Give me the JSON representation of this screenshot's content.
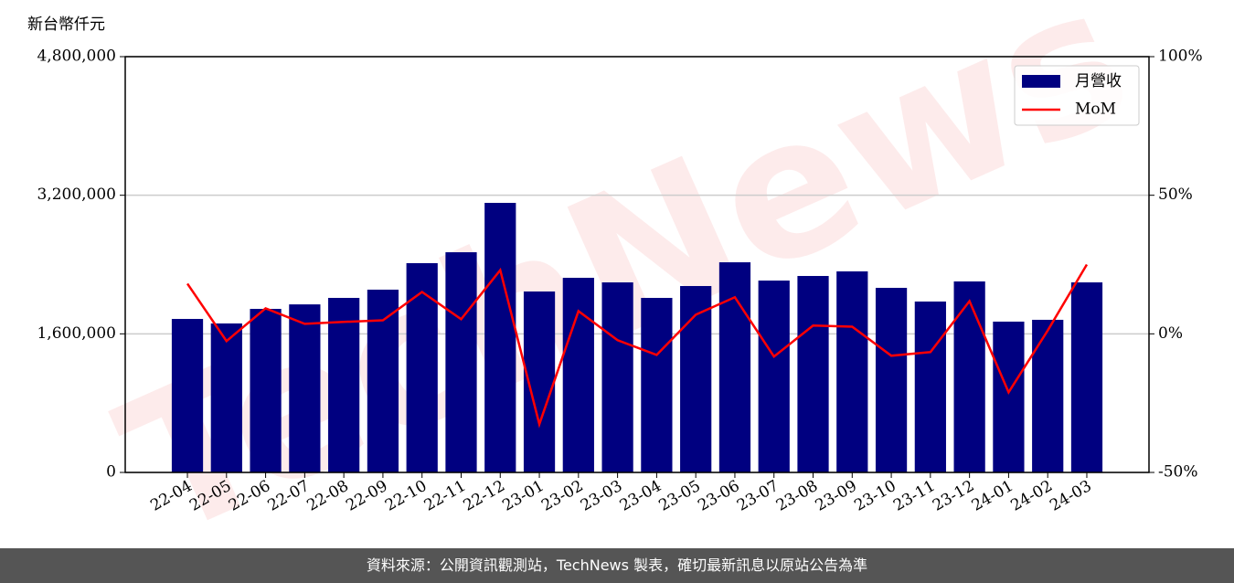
{
  "chart_data": {
    "type": "bar",
    "watermark": "TechNews",
    "y_label": "新台幣仟元",
    "categories": [
      "22-04",
      "22-05",
      "22-06",
      "22-07",
      "22-08",
      "22-09",
      "22-10",
      "22-11",
      "22-12",
      "23-01",
      "23-02",
      "23-03",
      "23-04",
      "23-05",
      "23-06",
      "23-07",
      "23-08",
      "23-09",
      "23-10",
      "23-11",
      "23-12",
      "24-01",
      "24-02",
      "24-03"
    ],
    "series": [
      {
        "name": "月營收",
        "type": "bar",
        "color": "#000080",
        "values": [
          1772000,
          1720000,
          1888000,
          1940000,
          2015000,
          2110000,
          2416000,
          2542000,
          3112000,
          2089000,
          2247000,
          2194000,
          2015000,
          2152000,
          2426000,
          2215000,
          2268000,
          2321000,
          2131000,
          1973000,
          2205000,
          1741000,
          1762000,
          2194000
        ]
      },
      {
        "name": "MoM",
        "type": "line",
        "color": "#ff0000",
        "axis": "y2",
        "values": [
          18.1,
          -2.6,
          9.2,
          3.6,
          4.3,
          4.9,
          15.1,
          5.3,
          23.0,
          -32.6,
          8.2,
          -2.3,
          -7.6,
          6.9,
          13.2,
          -8.2,
          3.0,
          2.6,
          -7.9,
          -6.6,
          11.8,
          -21.1,
          1.2,
          25.0
        ]
      }
    ],
    "ylim": [
      0,
      4800000
    ],
    "yticks": [
      0,
      {
        "value": 1600000,
        "label": "1,600,000"
      },
      {
        "value": 3200000,
        "label": "3,200,000"
      },
      {
        "value": 4800000,
        "label": "4,800,000"
      }
    ],
    "y2lim": [
      -50,
      100
    ],
    "y2ticks": [
      {
        "value": -50,
        "label": "-50%"
      },
      {
        "value": 0,
        "label": "0%"
      },
      {
        "value": 50,
        "label": "50%"
      },
      {
        "value": 100,
        "label": "100%"
      }
    ],
    "grid": true,
    "legend": "upper right"
  },
  "footer": "資料來源：公開資訊觀測站，TechNews 製表，確切最新訊息以原站公告為準"
}
